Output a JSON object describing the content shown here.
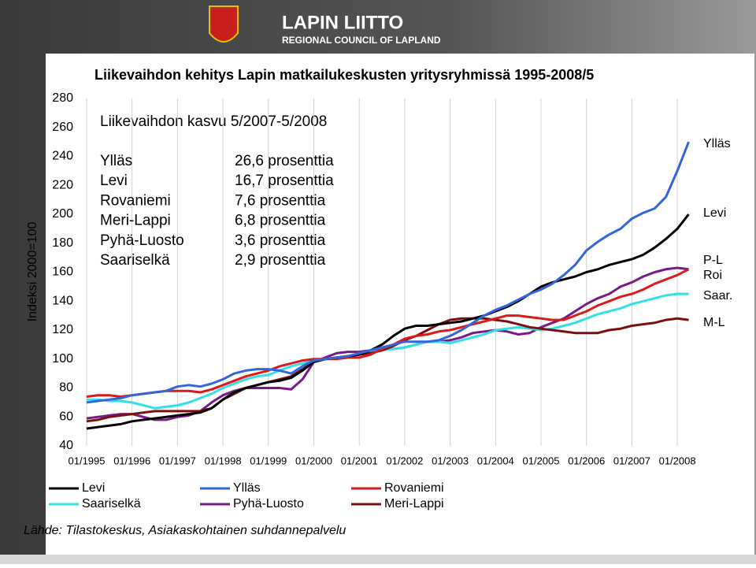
{
  "header": {
    "title": "LAPIN LIITTO",
    "subtitle": "REGIONAL COUNCIL OF LAPLAND"
  },
  "chart_data": {
    "type": "line",
    "title": "Liikevaihdon kehitys Lapin matkailukeskusten yritysryhmissä 1995-2008/5",
    "subtitle": "Liikevaihdon kasvu 5/2007-5/2008",
    "growth_table": [
      [
        "Ylläs",
        "26,6 prosenttia"
      ],
      [
        "Levi",
        "16,7 prosenttia"
      ],
      [
        "Rovaniemi",
        "7,6 prosenttia"
      ],
      [
        "Meri-Lappi",
        "6,8 prosenttia"
      ],
      [
        "Pyhä-Luosto",
        "3,6 prosenttia"
      ],
      [
        "Saariselkä",
        "2,9 prosenttia"
      ]
    ],
    "y_label": "Indeksi 2000=100",
    "categories": [
      "01/1995",
      null,
      null,
      null,
      "01/1996",
      null,
      null,
      null,
      "01/1997",
      null,
      null,
      null,
      "01/1998",
      null,
      null,
      null,
      "01/1999",
      null,
      null,
      null,
      "01/2000",
      null,
      null,
      null,
      "01/2001",
      null,
      null,
      null,
      "01/2002",
      null,
      null,
      null,
      "01/2003",
      null,
      null,
      null,
      "01/2004",
      null,
      null,
      null,
      "01/2005",
      null,
      null,
      null,
      "01/2006",
      null,
      null,
      null,
      "01/2007",
      null,
      null,
      null,
      "01/2008",
      null
    ],
    "ylim": [
      40,
      280
    ],
    "yticks": [
      40,
      60,
      80,
      100,
      120,
      140,
      160,
      180,
      200,
      220,
      240,
      260,
      280
    ],
    "xgrid": true,
    "series": [
      {
        "name": "Levi",
        "color": "#000000",
        "values": [
          52,
          53,
          54,
          55,
          57,
          58,
          59,
          60,
          61,
          62,
          63,
          66,
          72,
          77,
          80,
          82,
          84,
          85,
          87,
          92,
          98,
          100,
          101,
          102,
          103,
          106,
          110,
          116,
          121,
          123,
          123,
          124,
          125,
          126,
          128,
          130,
          133,
          136,
          140,
          145,
          150,
          153,
          155,
          157,
          160,
          162,
          165,
          167,
          169,
          172,
          177,
          183,
          190,
          200
        ]
      },
      {
        "name": "Ylläs",
        "color": "#3366dd",
        "values": [
          70,
          71,
          72,
          73,
          75,
          76,
          77,
          78,
          81,
          82,
          81,
          83,
          86,
          90,
          92,
          93,
          93,
          92,
          90,
          95,
          99,
          100,
          101,
          102,
          104,
          106,
          108,
          110,
          112,
          112,
          112,
          113,
          116,
          120,
          125,
          130,
          134,
          137,
          141,
          145,
          148,
          152,
          158,
          165,
          175,
          181,
          186,
          190,
          197,
          201,
          204,
          212,
          230,
          250
        ]
      },
      {
        "name": "Rovaniemi",
        "color": "#dd1a1a",
        "values": [
          74,
          75,
          75,
          74,
          75,
          76,
          77,
          78,
          78,
          78,
          77,
          79,
          82,
          85,
          88,
          90,
          92,
          95,
          97,
          99,
          100,
          100,
          100,
          101,
          101,
          103,
          107,
          110,
          114,
          116,
          117,
          119,
          120,
          122,
          124,
          126,
          128,
          130,
          130,
          129,
          128,
          127,
          127,
          130,
          133,
          137,
          140,
          143,
          145,
          148,
          152,
          155,
          158,
          162
        ]
      },
      {
        "name": "Saariselkä",
        "color": "#33e0e8",
        "values": [
          72,
          72,
          71,
          71,
          70,
          68,
          66,
          67,
          68,
          70,
          73,
          76,
          80,
          83,
          86,
          88,
          89,
          92,
          95,
          97,
          99,
          100,
          101,
          102,
          103,
          105,
          106,
          107,
          108,
          110,
          112,
          112,
          111,
          113,
          115,
          117,
          120,
          121,
          122,
          121,
          120,
          121,
          123,
          125,
          128,
          131,
          133,
          135,
          138,
          140,
          142,
          144,
          145,
          145
        ]
      },
      {
        "name": "Pyhä-Luosto",
        "color": "#7a1a8a",
        "values": [
          59,
          60,
          61,
          62,
          62,
          60,
          58,
          58,
          60,
          61,
          64,
          70,
          75,
          78,
          80,
          80,
          80,
          80,
          79,
          86,
          98,
          101,
          104,
          105,
          105,
          106,
          107,
          107,
          108,
          110,
          112,
          112,
          113,
          115,
          118,
          119,
          120,
          119,
          117,
          118,
          122,
          125,
          128,
          133,
          138,
          142,
          145,
          150,
          153,
          157,
          160,
          162,
          163,
          162
        ]
      },
      {
        "name": "Meri-Lappi",
        "color": "#7a1010",
        "values": [
          57,
          58,
          60,
          61,
          62,
          63,
          64,
          64,
          64,
          64,
          64,
          66,
          72,
          76,
          80,
          82,
          84,
          86,
          88,
          93,
          98,
          100,
          101,
          102,
          103,
          104,
          106,
          109,
          113,
          116,
          120,
          124,
          127,
          128,
          128,
          128,
          127,
          126,
          124,
          122,
          121,
          120,
          119,
          118,
          118,
          118,
          120,
          121,
          123,
          124,
          125,
          127,
          128,
          127
        ]
      }
    ],
    "end_labels": [
      "Ylläs",
      "Levi",
      "P-L",
      "Roi",
      "Saar.",
      "M-L"
    ],
    "source": "Lähde: Tilastokeskus, Asiakaskohtainen suhdannepalvelu"
  }
}
